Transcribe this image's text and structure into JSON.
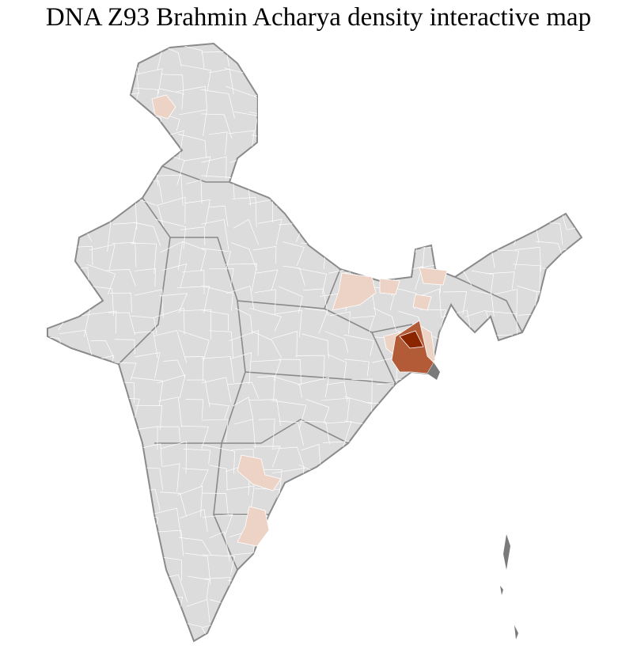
{
  "title": "DNA Z93 Brahmin Acharya density interactive map",
  "colors": {
    "base": "#dcdcdc",
    "border": "#8a8a8a",
    "district_line": "#ffffff",
    "low": "#edd3c5",
    "medium": "#b35a36",
    "high": "#8b2500",
    "coast_dark": "#7a7a7a"
  }
}
